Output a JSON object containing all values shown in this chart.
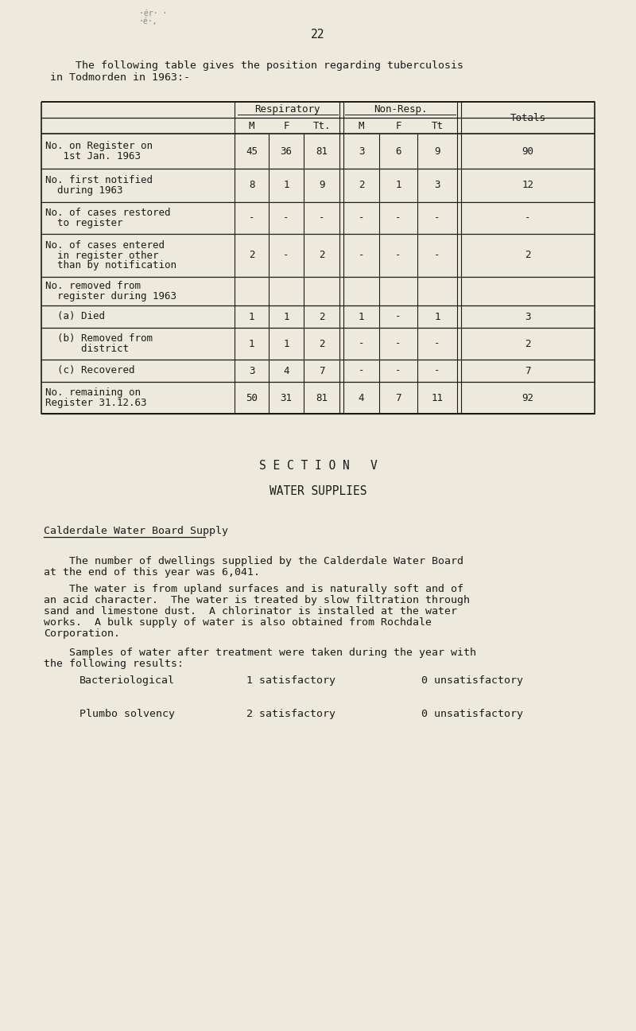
{
  "bg_color": "#ede9dd",
  "text_color": "#1a1a1a",
  "page_number": "22",
  "corner_text1": "·ér· ·",
  "corner_text2": "·é·,",
  "intro_line1": "    The following table gives the position regarding tuberculosis",
  "intro_line2": "in Todmorden in 1963:-",
  "table": {
    "rows": [
      {
        "label_lines": [
          "No. on Register on",
          "   1st Jan. 1963"
        ],
        "resp_m": "45",
        "resp_f": "36",
        "resp_tt": "81",
        "non_m": "3",
        "non_f": "6",
        "non_tt": "9",
        "total": "90"
      },
      {
        "label_lines": [
          "No. first notified",
          "  during 1963"
        ],
        "resp_m": "8",
        "resp_f": "1",
        "resp_tt": "9",
        "non_m": "2",
        "non_f": "1",
        "non_tt": "3",
        "total": "12"
      },
      {
        "label_lines": [
          "No. of cases restored",
          "  to register"
        ],
        "resp_m": "-",
        "resp_f": "-",
        "resp_tt": "-",
        "non_m": "-",
        "non_f": "-",
        "non_tt": "-",
        "total": "-"
      },
      {
        "label_lines": [
          "No. of cases entered",
          "  in register other",
          "  than by notification"
        ],
        "resp_m": "2",
        "resp_f": "-",
        "resp_tt": "2",
        "non_m": "-",
        "non_f": "-",
        "non_tt": "-",
        "total": "2"
      },
      {
        "label_lines": [
          "No. removed from",
          "  register during 1963"
        ],
        "resp_m": "",
        "resp_f": "",
        "resp_tt": "",
        "non_m": "",
        "non_f": "",
        "non_tt": "",
        "total": ""
      },
      {
        "label_lines": [
          "  (a) Died"
        ],
        "resp_m": "1",
        "resp_f": "1",
        "resp_tt": "2",
        "non_m": "1",
        "non_f": "-",
        "non_tt": "1",
        "total": "3"
      },
      {
        "label_lines": [
          "  (b) Removed from",
          "      district"
        ],
        "resp_m": "1",
        "resp_f": "1",
        "resp_tt": "2",
        "non_m": "-",
        "non_f": "-",
        "non_tt": "-",
        "total": "2"
      },
      {
        "label_lines": [
          "  (c) Recovered"
        ],
        "resp_m": "3",
        "resp_f": "4",
        "resp_tt": "7",
        "non_m": "-",
        "non_f": "-",
        "non_tt": "-",
        "total": "7"
      },
      {
        "label_lines": [
          "No. remaining on",
          "Register 31.12.63"
        ],
        "resp_m": "50",
        "resp_f": "31",
        "resp_tt": "81",
        "non_m": "4",
        "non_f": "7",
        "non_tt": "11",
        "total": "92"
      }
    ]
  },
  "section_title": "S E C T I O N   V",
  "section_subtitle": "WATER SUPPLIES",
  "calderdale_header": "Calderdale Water Board Supply",
  "para1_indent": "    The number of dwellings supplied by the Calderdale Water Board",
  "para1_cont": "at the end of this year was 6,041.",
  "para2_indent": "    The water is from upland surfaces and is naturally soft and of",
  "para2_lines": [
    "an acid character.  The water is treated by slow filtration through",
    "sand and limestone dust.  A chlorinator is installed at the water",
    "works.  A bulk supply of water is also obtained from Rochdale",
    "Corporation."
  ],
  "para3_indent": "    Samples of water after treatment were taken during the year with",
  "para3_cont": "the following results:",
  "results": [
    {
      "label": "Bacteriological",
      "sat": "1 satisfactory",
      "unsat": "0 unsatisfactory"
    },
    {
      "label": "Plumbo solvency",
      "sat": "2 satisfactory",
      "unsat": "0 unsatisfactory"
    }
  ]
}
